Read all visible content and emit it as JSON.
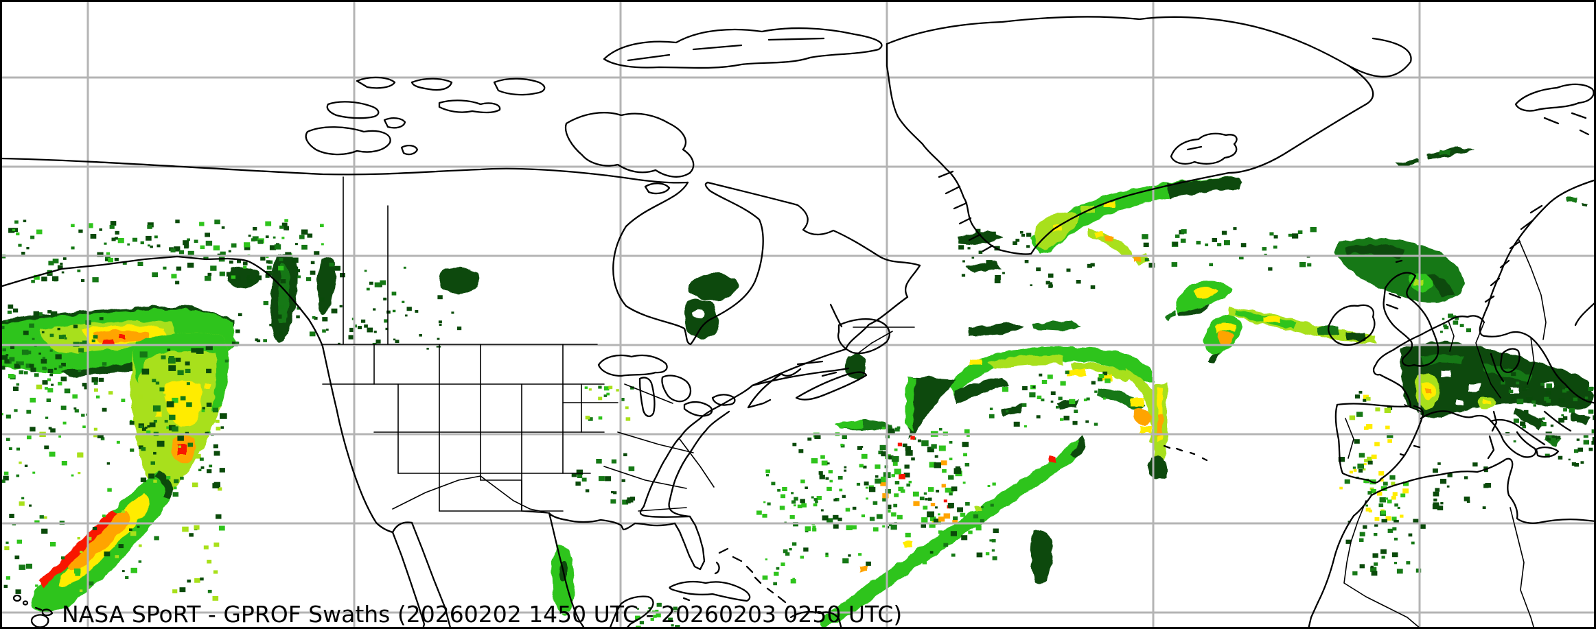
{
  "title": {
    "text": "NASA SPoRT - GPROF Swaths (20260202 1450 UTC - 20260203 0250 UTC)"
  },
  "map": {
    "background": "#ffffff",
    "frame_color": "#000000",
    "coastline_color": "#000000",
    "grid": {
      "color": "#b4b4b4",
      "x_lines": [
        128,
        516,
        904,
        1292,
        1680,
        2068
      ],
      "y_lines": [
        113,
        243,
        373,
        503,
        633,
        763,
        893
      ]
    },
    "precip_palette": {
      "g1": "#0a4a0a",
      "g2": "#157815",
      "g3": "#2fc41c",
      "g4": "#a8e01a",
      "yl": "#ffec00",
      "or": "#ffa400",
      "do": "#ff6a00",
      "rd": "#f81500"
    },
    "regions_shown": [
      "north-america",
      "greenland",
      "iceland",
      "british-isles",
      "scandinavia",
      "western-europe",
      "north-africa",
      "caribbean",
      "hawaii",
      "canadian-arctic"
    ],
    "swath_areas": [
      "gulf-of-alaska",
      "northeast-pacific",
      "canadian-prairies",
      "hudson-bay",
      "western-atlantic",
      "central-atlantic",
      "greenland-southeast-coast",
      "north-atlantic-near-ireland",
      "western-europe",
      "iberia",
      "mexico-gulf-coast"
    ]
  }
}
